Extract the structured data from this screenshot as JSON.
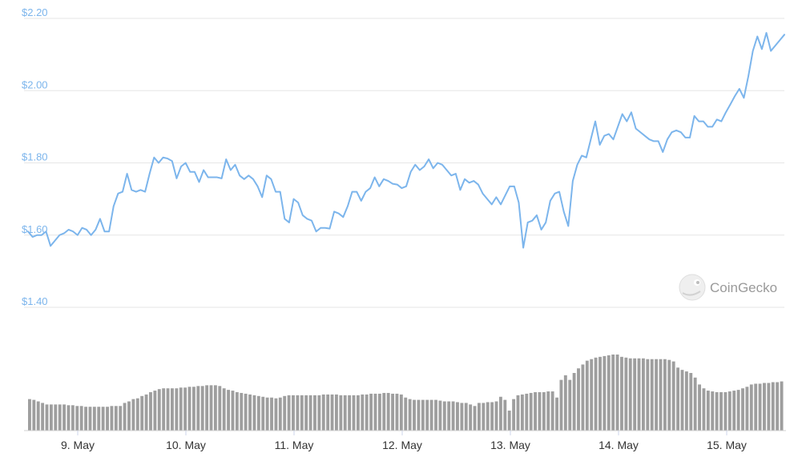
{
  "watermark": {
    "text": "CoinGecko",
    "icon": "gecko-logo-icon"
  },
  "colors": {
    "price_line": "#7cb5ec",
    "volume_bar": "#9e9e9e",
    "grid": "#e6e6e6",
    "axis_text": "#7cb5ec",
    "date_text": "#333333",
    "watermark": "#9a9a9a"
  },
  "chart_data": [
    {
      "type": "line",
      "title": "",
      "xlabel": "",
      "ylabel": "",
      "ylim": [
        1.4,
        2.2
      ],
      "y_ticks": [
        1.4,
        1.6,
        1.8,
        2.0,
        2.2
      ],
      "y_tick_labels": [
        "$1.40",
        "$1.60",
        "$1.80",
        "$2.00",
        "$2.20"
      ],
      "x_ticks": [
        "9. May",
        "10. May",
        "11. May",
        "12. May",
        "13. May",
        "14. May",
        "15. May"
      ],
      "grid": true,
      "series": [
        {
          "values": [
            1.61,
            1.595,
            1.6,
            1.6,
            1.61,
            1.57,
            1.585,
            1.6,
            1.605,
            1.615,
            1.61,
            1.6,
            1.62,
            1.615,
            1.6,
            1.615,
            1.645,
            1.61,
            1.61,
            1.68,
            1.715,
            1.72,
            1.77,
            1.725,
            1.72,
            1.725,
            1.72,
            1.77,
            1.815,
            1.8,
            1.815,
            1.812,
            1.805,
            1.757,
            1.79,
            1.8,
            1.775,
            1.775,
            1.747,
            1.78,
            1.76,
            1.76,
            1.76,
            1.757,
            1.81,
            1.78,
            1.795,
            1.765,
            1.755,
            1.765,
            1.755,
            1.735,
            1.705,
            1.765,
            1.755,
            1.72,
            1.72,
            1.645,
            1.635,
            1.7,
            1.69,
            1.655,
            1.645,
            1.64,
            1.61,
            1.62,
            1.62,
            1.618,
            1.665,
            1.66,
            1.65,
            1.68,
            1.72,
            1.72,
            1.695,
            1.72,
            1.73,
            1.76,
            1.735,
            1.755,
            1.75,
            1.742,
            1.74,
            1.73,
            1.735,
            1.775,
            1.795,
            1.78,
            1.79,
            1.81,
            1.785,
            1.8,
            1.795,
            1.78,
            1.765,
            1.77,
            1.725,
            1.755,
            1.745,
            1.75,
            1.74,
            1.715,
            1.7,
            1.685,
            1.705,
            1.685,
            1.71,
            1.735,
            1.735,
            1.69,
            1.565,
            1.635,
            1.64,
            1.655,
            1.615,
            1.635,
            1.695,
            1.715,
            1.72,
            1.665,
            1.625,
            1.75,
            1.795,
            1.82,
            1.815,
            1.865,
            1.915,
            1.85,
            1.875,
            1.88,
            1.865,
            1.9,
            1.935,
            1.915,
            1.94,
            1.895,
            1.885,
            1.875,
            1.865,
            1.86,
            1.86,
            1.83,
            1.865,
            1.885,
            1.89,
            1.885,
            1.87,
            1.87,
            1.93,
            1.915,
            1.915,
            1.9,
            1.9,
            1.92,
            1.915,
            1.94,
            1.962,
            1.985,
            2.005,
            1.98,
            2.04,
            2.11,
            2.15,
            2.115,
            2.16,
            2.11,
            2.125,
            2.14,
            2.155
          ]
        }
      ]
    },
    {
      "type": "bar",
      "title": "",
      "xlabel": "",
      "ylabel": "",
      "ylim": [
        0,
        1
      ],
      "values": [
        0.41,
        0.4,
        0.38,
        0.36,
        0.34,
        0.34,
        0.34,
        0.34,
        0.34,
        0.33,
        0.33,
        0.32,
        0.32,
        0.31,
        0.31,
        0.31,
        0.31,
        0.31,
        0.31,
        0.32,
        0.32,
        0.32,
        0.36,
        0.38,
        0.41,
        0.42,
        0.45,
        0.47,
        0.5,
        0.52,
        0.54,
        0.55,
        0.55,
        0.55,
        0.55,
        0.56,
        0.56,
        0.57,
        0.57,
        0.58,
        0.58,
        0.59,
        0.59,
        0.59,
        0.58,
        0.55,
        0.53,
        0.52,
        0.5,
        0.49,
        0.48,
        0.47,
        0.46,
        0.45,
        0.44,
        0.43,
        0.43,
        0.42,
        0.43,
        0.45,
        0.46,
        0.46,
        0.46,
        0.46,
        0.46,
        0.46,
        0.46,
        0.46,
        0.47,
        0.47,
        0.47,
        0.47,
        0.46,
        0.46,
        0.46,
        0.46,
        0.46,
        0.47,
        0.47,
        0.48,
        0.48,
        0.48,
        0.49,
        0.49,
        0.48,
        0.48,
        0.47,
        0.43,
        0.41,
        0.4,
        0.4,
        0.4,
        0.4,
        0.4,
        0.4,
        0.39,
        0.38,
        0.38,
        0.38,
        0.37,
        0.36,
        0.36,
        0.34,
        0.32,
        0.36,
        0.36,
        0.37,
        0.37,
        0.38,
        0.44,
        0.4,
        0.26,
        0.41,
        0.46,
        0.47,
        0.48,
        0.49,
        0.5,
        0.5,
        0.5,
        0.51,
        0.51,
        0.43,
        0.66,
        0.72,
        0.66,
        0.75,
        0.81,
        0.86,
        0.91,
        0.93,
        0.95,
        0.96,
        0.97,
        0.98,
        0.99,
        0.99,
        0.96,
        0.95,
        0.94,
        0.94,
        0.94,
        0.94,
        0.93,
        0.93,
        0.93,
        0.93,
        0.93,
        0.92,
        0.9,
        0.82,
        0.79,
        0.77,
        0.75,
        0.69,
        0.6,
        0.55,
        0.52,
        0.51,
        0.5,
        0.5,
        0.5,
        0.51,
        0.52,
        0.53,
        0.55,
        0.57,
        0.6,
        0.61,
        0.61,
        0.62,
        0.62,
        0.63,
        0.63,
        0.64
      ]
    }
  ]
}
